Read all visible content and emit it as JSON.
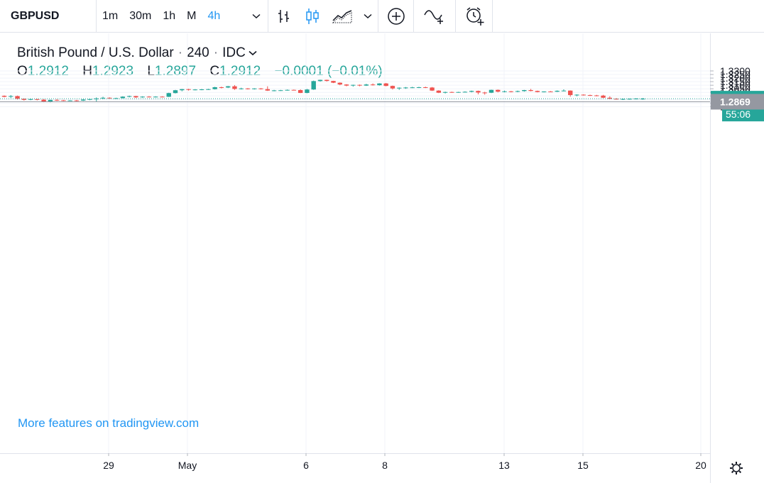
{
  "toolbar": {
    "symbol": "GBPUSD",
    "intervals": [
      "1m",
      "30m",
      "1h",
      "M",
      "4h"
    ],
    "active_interval": "4h",
    "icons": [
      "chevron-down-icon",
      "bar-chart-icon",
      "candles-icon",
      "area-chart-icon",
      "chevron-down-icon",
      "add-circle-icon",
      "compare-icon",
      "alert-clock-icon"
    ]
  },
  "legend": {
    "name": "British Pound / U.S. Dollar",
    "interval": "240",
    "source": "IDC",
    "open_label": "O",
    "open": "1.2912",
    "high_label": "H",
    "high": "1.2923",
    "low_label": "L",
    "low": "1.2897",
    "close_label": "C",
    "close": "1.2912",
    "change": "−0.0001 (−0.01%)"
  },
  "promo": "More features on tradingview.com",
  "colors": {
    "up": "#26a69a",
    "down": "#ef5350",
    "accent": "#2196f3",
    "grid": "#f0f3fa",
    "axis_text": "#131722",
    "current_price_bg": "#26a69a",
    "marker_bg": "#9598a1"
  },
  "chart_data": {
    "type": "candlestick",
    "symbol": "GBPUSD",
    "interval": "240",
    "ylim": [
      1.2765,
      1.335
    ],
    "y_ticks": [
      "1.3300",
      "1.3250",
      "1.3200",
      "1.3150",
      "1.3100",
      "1.3050",
      "1.3000",
      "1.2950",
      "1.2850",
      "1.2800"
    ],
    "x_ticks": [
      "29",
      "May",
      "6",
      "8",
      "13",
      "15",
      "20"
    ],
    "current_price": "1.2912",
    "countdown": "55:06",
    "marker_price": "1.2869",
    "grid": true,
    "candles": [
      [
        1.2952,
        1.2958,
        1.293,
        1.2938
      ],
      [
        1.2938,
        1.2962,
        1.2922,
        1.2948
      ],
      [
        1.2948,
        1.2955,
        1.29,
        1.291
      ],
      [
        1.291,
        1.2915,
        1.2885,
        1.2895
      ],
      [
        1.2895,
        1.2912,
        1.289,
        1.2905
      ],
      [
        1.2905,
        1.291,
        1.2888,
        1.2898
      ],
      [
        1.2898,
        1.2905,
        1.2862,
        1.2865
      ],
      [
        1.2865,
        1.2898,
        1.286,
        1.2895
      ],
      [
        1.2895,
        1.2905,
        1.288,
        1.289
      ],
      [
        1.289,
        1.2895,
        1.2878,
        1.2885
      ],
      [
        1.2885,
        1.2892,
        1.2878,
        1.2888
      ],
      [
        1.2888,
        1.2895,
        1.2875,
        1.2885
      ],
      [
        1.2885,
        1.2905,
        1.288,
        1.29
      ],
      [
        1.29,
        1.291,
        1.289,
        1.2905
      ],
      [
        1.2905,
        1.293,
        1.287,
        1.2915
      ],
      [
        1.2915,
        1.2938,
        1.2905,
        1.2925
      ],
      [
        1.2925,
        1.293,
        1.291,
        1.2915
      ],
      [
        1.2915,
        1.2925,
        1.2908,
        1.292
      ],
      [
        1.292,
        1.2945,
        1.2915,
        1.294
      ],
      [
        1.294,
        1.2955,
        1.293,
        1.2948
      ],
      [
        1.2948,
        1.2952,
        1.292,
        1.293
      ],
      [
        1.293,
        1.2945,
        1.2925,
        1.294
      ],
      [
        1.294,
        1.2948,
        1.293,
        1.2938
      ],
      [
        1.2938,
        1.2945,
        1.293,
        1.294
      ],
      [
        1.294,
        1.2945,
        1.2932,
        1.2938
      ],
      [
        1.2938,
        1.2995,
        1.2935,
        1.299
      ],
      [
        1.299,
        1.3035,
        1.2985,
        1.303
      ],
      [
        1.303,
        1.3048,
        1.3015,
        1.3045
      ],
      [
        1.3045,
        1.305,
        1.3025,
        1.3035
      ],
      [
        1.3035,
        1.3045,
        1.3028,
        1.304
      ],
      [
        1.304,
        1.3048,
        1.303,
        1.3042
      ],
      [
        1.3042,
        1.305,
        1.3035,
        1.3045
      ],
      [
        1.3045,
        1.3078,
        1.304,
        1.3072
      ],
      [
        1.3072,
        1.308,
        1.3055,
        1.3068
      ],
      [
        1.3068,
        1.309,
        1.306,
        1.3085
      ],
      [
        1.3085,
        1.3102,
        1.3035,
        1.3048
      ],
      [
        1.3048,
        1.3065,
        1.304,
        1.3055
      ],
      [
        1.3055,
        1.306,
        1.304,
        1.3045
      ],
      [
        1.3045,
        1.3058,
        1.304,
        1.3055
      ],
      [
        1.3055,
        1.306,
        1.304,
        1.3045
      ],
      [
        1.3045,
        1.3085,
        1.302,
        1.3025
      ],
      [
        1.3025,
        1.3035,
        1.3015,
        1.3028
      ],
      [
        1.3028,
        1.3035,
        1.302,
        1.303
      ],
      [
        1.303,
        1.304,
        1.3025,
        1.3035
      ],
      [
        1.3035,
        1.304,
        1.3028,
        1.3032
      ],
      [
        1.3032,
        1.3042,
        1.299,
        1.2992
      ],
      [
        1.2992,
        1.3048,
        1.2988,
        1.304
      ],
      [
        1.304,
        1.3165,
        1.3035,
        1.3158
      ],
      [
        1.3158,
        1.3178,
        1.315,
        1.3175
      ],
      [
        1.3175,
        1.3178,
        1.3152,
        1.316
      ],
      [
        1.316,
        1.3162,
        1.313,
        1.3135
      ],
      [
        1.3135,
        1.314,
        1.31,
        1.311
      ],
      [
        1.311,
        1.3115,
        1.3085,
        1.3095
      ],
      [
        1.3095,
        1.3108,
        1.308,
        1.3105
      ],
      [
        1.3105,
        1.311,
        1.3085,
        1.3095
      ],
      [
        1.3095,
        1.312,
        1.309,
        1.311
      ],
      [
        1.311,
        1.3125,
        1.3095,
        1.31
      ],
      [
        1.31,
        1.3128,
        1.3095,
        1.3125
      ],
      [
        1.3125,
        1.3132,
        1.3085,
        1.309
      ],
      [
        1.309,
        1.3095,
        1.304,
        1.3055
      ],
      [
        1.3055,
        1.307,
        1.3035,
        1.3065
      ],
      [
        1.3065,
        1.3075,
        1.305,
        1.3068
      ],
      [
        1.3068,
        1.3078,
        1.306,
        1.307
      ],
      [
        1.307,
        1.3078,
        1.306,
        1.3072
      ],
      [
        1.3072,
        1.308,
        1.306,
        1.3068
      ],
      [
        1.3068,
        1.3075,
        1.302,
        1.3025
      ],
      [
        1.3025,
        1.303,
        1.299,
        1.2995
      ],
      [
        1.2995,
        1.301,
        1.2985,
        1.3005
      ],
      [
        1.3005,
        1.301,
        1.2995,
        1.3003
      ],
      [
        1.3003,
        1.3008,
        1.2995,
        1.3005
      ],
      [
        1.3005,
        1.3015,
        1.3,
        1.3008
      ],
      [
        1.3008,
        1.3025,
        1.3,
        1.302
      ],
      [
        1.302,
        1.3025,
        1.2972,
        1.2998
      ],
      [
        1.2998,
        1.3008,
        1.2968,
        1.2995
      ],
      [
        1.2995,
        1.3038,
        1.299,
        1.3035
      ],
      [
        1.3035,
        1.304,
        1.3,
        1.301
      ],
      [
        1.301,
        1.3025,
        1.3,
        1.3015
      ],
      [
        1.3015,
        1.302,
        1.3,
        1.3008
      ],
      [
        1.3008,
        1.3025,
        1.3002,
        1.3018
      ],
      [
        1.3018,
        1.3035,
        1.301,
        1.3032
      ],
      [
        1.3032,
        1.3048,
        1.3015,
        1.302
      ],
      [
        1.302,
        1.3025,
        1.3,
        1.3005
      ],
      [
        1.3005,
        1.3015,
        1.3,
        1.3012
      ],
      [
        1.3012,
        1.3018,
        1.3005,
        1.301
      ],
      [
        1.301,
        1.3028,
        1.3005,
        1.3022
      ],
      [
        1.3022,
        1.3042,
        1.3015,
        1.3025
      ],
      [
        1.3025,
        1.3028,
        1.294,
        1.2962
      ],
      [
        1.2962,
        1.2972,
        1.2945,
        1.2968
      ],
      [
        1.2968,
        1.2972,
        1.2955,
        1.2962
      ],
      [
        1.2962,
        1.2968,
        1.295,
        1.2958
      ],
      [
        1.2958,
        1.2965,
        1.2945,
        1.2955
      ],
      [
        1.2955,
        1.2965,
        1.292,
        1.2925
      ],
      [
        1.2925,
        1.2945,
        1.2905,
        1.291
      ],
      [
        1.291,
        1.292,
        1.29,
        1.2905
      ],
      [
        1.2905,
        1.2912,
        1.2893,
        1.2908
      ],
      [
        1.2908,
        1.2914,
        1.29,
        1.291
      ],
      [
        1.291,
        1.2918,
        1.2902,
        1.2914
      ],
      [
        1.2912,
        1.2923,
        1.2897,
        1.2912
      ]
    ]
  }
}
